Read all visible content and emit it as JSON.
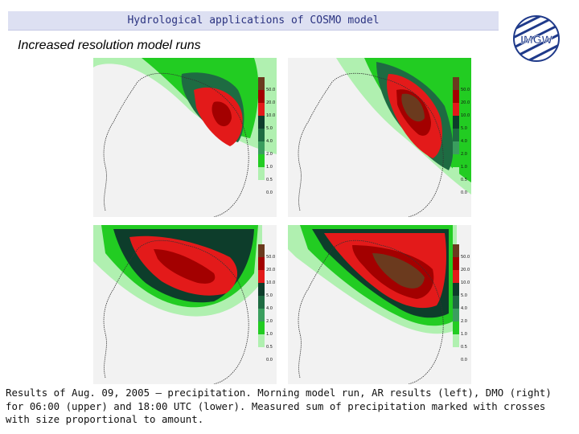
{
  "header": {
    "title": "Hydrological applications of COSMO model"
  },
  "logo": {
    "text": "IMGW"
  },
  "subtitle": "Increased resolution model runs",
  "legend": {
    "labels": [
      "50.0",
      "20.0",
      "10.0",
      "5.0",
      "4.0",
      "2.0",
      "1.0",
      "0.5",
      "0.0"
    ],
    "colors": [
      "#6b3a1e",
      "#a30000",
      "#e31a1a",
      "#0d3d2b",
      "#1e6b42",
      "#3a9e5e",
      "#22cc22",
      "#b0f0b0",
      "#f2f2f2"
    ]
  },
  "panels": [
    {
      "position": "upper-left",
      "description": "AR results, 06:00 UTC"
    },
    {
      "position": "upper-right",
      "description": "DMO, 06:00 UTC"
    },
    {
      "position": "lower-left",
      "description": "AR results, 18:00 UTC"
    },
    {
      "position": "lower-right",
      "description": "DMO, 18:00 UTC"
    }
  ],
  "caption": "Results of Aug. 09, 2005 – precipitation. Morning model run, AR results (left), DMO (right)  for 06:00 (upper) and 18:00 UTC (lower). Measured sum of precipitation marked with crosses with size proportional to amount."
}
